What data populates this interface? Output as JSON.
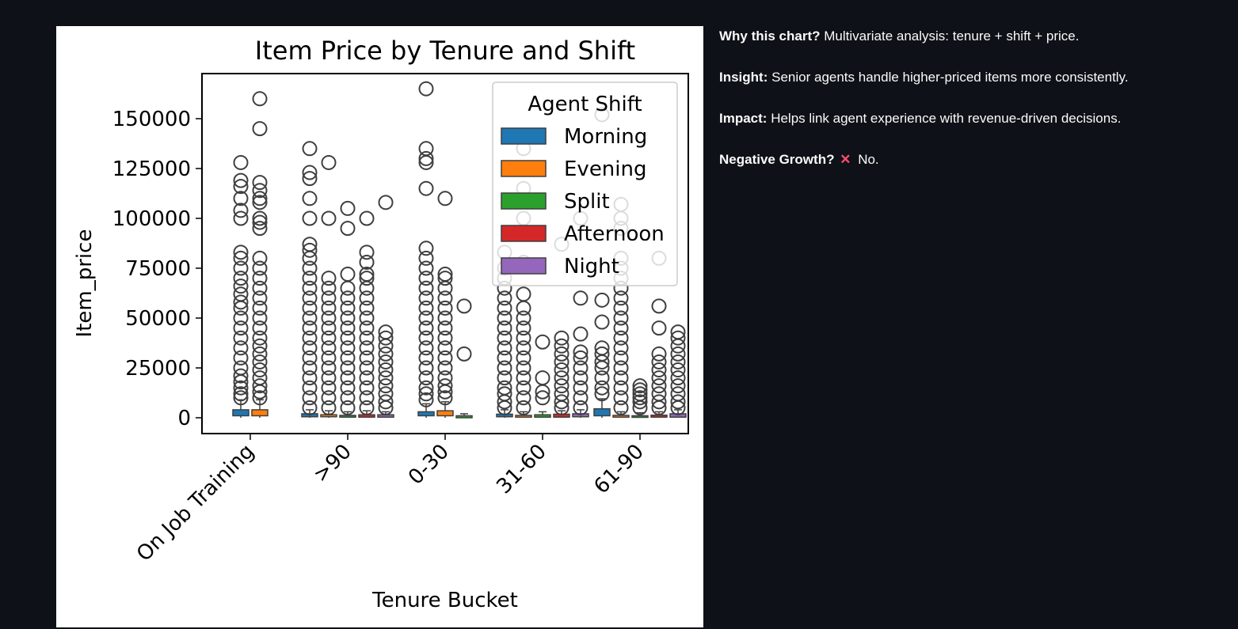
{
  "chart_data": {
    "type": "box",
    "title": "Item Price by Tenure and Shift",
    "xlabel": "Tenure Bucket",
    "ylabel": "Item_price",
    "ylim": [
      -10000,
      175000
    ],
    "yticks": [
      0,
      25000,
      50000,
      75000,
      100000,
      125000,
      150000
    ],
    "ytick_labels": [
      "0",
      "25000",
      "50000",
      "75000",
      "100000",
      "125000",
      "150000"
    ],
    "categories": [
      "On Job Training",
      ">90",
      "0-30",
      "31-60",
      "61-90"
    ],
    "legend": {
      "title": "Agent Shift",
      "position": "upper right",
      "entries": [
        "Morning",
        "Evening",
        "Split",
        "Afternoon",
        "Night"
      ]
    },
    "series": [
      {
        "name": "Morning",
        "color": "#1f77b4",
        "boxes": [
          {
            "category": "On Job Training",
            "q1": 1000,
            "q3": 4000,
            "whisker_low": 0,
            "whisker_high": 9000,
            "outliers": [
              10000,
              12000,
              15000,
              18000,
              21000,
              25000,
              30000,
              35000,
              40000,
              45000,
              50000,
              55000,
              58000,
              62000,
              66000,
              70000,
              75000,
              80000,
              83000,
              100000,
              104000,
              110000,
              116000,
              119000,
              128000
            ]
          },
          {
            "category": ">90",
            "q1": 500,
            "q3": 2000,
            "whisker_low": 0,
            "whisker_high": 4000,
            "outliers": [
              5000,
              10000,
              15000,
              20000,
              25000,
              30000,
              35000,
              40000,
              45000,
              50000,
              55000,
              60000,
              65000,
              70000,
              75000,
              80000,
              84000,
              87000,
              100000,
              110000,
              120000,
              123000,
              135000
            ]
          },
          {
            "category": "0-30",
            "q1": 1000,
            "q3": 3000,
            "whisker_low": 0,
            "whisker_high": 7000,
            "outliers": [
              9000,
              12000,
              15000,
              20000,
              25000,
              30000,
              35000,
              40000,
              45000,
              50000,
              55000,
              60000,
              65000,
              70000,
              75000,
              80000,
              85000,
              115000,
              128000,
              130000,
              135000,
              165000
            ]
          },
          {
            "category": "31-60",
            "q1": 500,
            "q3": 1800,
            "whisker_low": 0,
            "whisker_high": 4000,
            "outliers": [
              5000,
              8000,
              12000,
              15000,
              20000,
              25000,
              30000,
              35000,
              40000,
              45000,
              50000,
              55000,
              60000,
              65000,
              70000,
              75000,
              83000
            ]
          },
          {
            "category": "61-90",
            "q1": 1000,
            "q3": 4500,
            "whisker_low": 0,
            "whisker_high": 9500,
            "outliers": [
              12000,
              15000,
              20000,
              25000,
              28000,
              32000,
              35000,
              48000,
              59000,
              152000
            ]
          }
        ]
      },
      {
        "name": "Evening",
        "color": "#ff7f0e",
        "boxes": [
          {
            "category": "On Job Training",
            "q1": 1000,
            "q3": 4000,
            "whisker_low": 0,
            "whisker_high": 9000,
            "outliers": [
              10000,
              13000,
              16000,
              20000,
              24000,
              28000,
              32000,
              36000,
              40000,
              45000,
              50000,
              55000,
              60000,
              65000,
              70000,
              75000,
              80000,
              95000,
              98000,
              100000,
              108000,
              110000,
              114000,
              118000,
              145000,
              160000
            ]
          },
          {
            "category": ">90",
            "q1": 500,
            "q3": 1500,
            "whisker_low": 0,
            "whisker_high": 3500,
            "outliers": [
              5000,
              10000,
              15000,
              20000,
              25000,
              30000,
              35000,
              40000,
              45000,
              50000,
              55000,
              60000,
              65000,
              70000,
              100000,
              128000
            ]
          },
          {
            "category": "0-30",
            "q1": 1000,
            "q3": 3500,
            "whisker_low": 0,
            "whisker_high": 8000,
            "outliers": [
              10000,
              13000,
              16000,
              20000,
              25000,
              30000,
              35000,
              40000,
              45000,
              50000,
              55000,
              60000,
              65000,
              70000,
              72000,
              110000
            ]
          },
          {
            "category": "31-60",
            "q1": 300,
            "q3": 1200,
            "whisker_low": 0,
            "whisker_high": 3000,
            "outliers": [
              5000,
              10000,
              15000,
              20000,
              25000,
              30000,
              35000,
              40000,
              45000,
              50000,
              55000,
              62000,
              78000,
              100000,
              115000,
              135000
            ]
          },
          {
            "category": "61-90",
            "q1": 300,
            "q3": 1200,
            "whisker_low": 0,
            "whisker_high": 3000,
            "outliers": [
              5000,
              10000,
              15000,
              20000,
              25000,
              30000,
              35000,
              40000,
              45000,
              50000,
              55000,
              60000,
              65000,
              70000,
              75000,
              80000,
              95000,
              100000,
              107000
            ]
          }
        ]
      },
      {
        "name": "Split",
        "color": "#2ca02c",
        "boxes": [
          {
            "category": ">90",
            "q1": 300,
            "q3": 1200,
            "whisker_low": 0,
            "whisker_high": 3000,
            "outliers": [
              5000,
              10000,
              15000,
              20000,
              25000,
              30000,
              35000,
              40000,
              45000,
              50000,
              55000,
              60000,
              65000,
              72000,
              95000,
              105000
            ]
          },
          {
            "category": "0-30",
            "q1": 0,
            "q3": 1000,
            "whisker_low": 0,
            "whisker_high": 2000,
            "outliers": [
              32000,
              56000
            ]
          },
          {
            "category": "31-60",
            "q1": 300,
            "q3": 1500,
            "whisker_low": 0,
            "whisker_high": 3000,
            "outliers": [
              10000,
              13000,
              20000,
              38000
            ]
          },
          {
            "category": "61-90",
            "q1": 200,
            "q3": 1000,
            "whisker_low": 0,
            "whisker_high": 2500,
            "outliers": [
              5000,
              8000,
              10000,
              12000,
              14000,
              16000
            ]
          }
        ]
      },
      {
        "name": "Afternoon",
        "color": "#d62728",
        "boxes": [
          {
            "category": ">90",
            "q1": 300,
            "q3": 1500,
            "whisker_low": 0,
            "whisker_high": 3500,
            "outliers": [
              5000,
              10000,
              15000,
              20000,
              25000,
              30000,
              35000,
              40000,
              45000,
              50000,
              55000,
              60000,
              65000,
              70000,
              72000,
              78000,
              83000,
              100000
            ]
          },
          {
            "category": "31-60",
            "q1": 300,
            "q3": 1800,
            "whisker_low": 0,
            "whisker_high": 3500,
            "outliers": [
              5000,
              8000,
              12000,
              16000,
              20000,
              24000,
              28000,
              32000,
              36000,
              40000,
              87000
            ]
          },
          {
            "category": "61-90",
            "q1": 300,
            "q3": 1300,
            "whisker_low": 0,
            "whisker_high": 3000,
            "outliers": [
              5000,
              8000,
              12000,
              16000,
              20000,
              24000,
              28000,
              32000,
              45000,
              56000,
              80000
            ]
          }
        ]
      },
      {
        "name": "Night",
        "color": "#9467bd",
        "boxes": [
          {
            "category": ">90",
            "q1": 300,
            "q3": 1500,
            "whisker_low": 0,
            "whisker_high": 3000,
            "outliers": [
              5000,
              8000,
              12000,
              16000,
              20000,
              24000,
              28000,
              32000,
              36000,
              40000,
              43000,
              108000
            ]
          },
          {
            "category": "31-60",
            "q1": 500,
            "q3": 2000,
            "whisker_low": 0,
            "whisker_high": 4000,
            "outliers": [
              5000,
              10000,
              15000,
              20000,
              25000,
              30000,
              33000,
              42000,
              60000,
              100000
            ]
          },
          {
            "category": "61-90",
            "q1": 300,
            "q3": 2000,
            "whisker_low": 0,
            "whisker_high": 4000,
            "outliers": [
              5000,
              8000,
              12000,
              16000,
              20000,
              24000,
              28000,
              32000,
              36000,
              40000,
              43000
            ]
          }
        ]
      }
    ]
  },
  "notes": [
    {
      "label": "Why this chart?",
      "text": "Multivariate analysis: tenure + shift + price."
    },
    {
      "label": "Insight:",
      "text": "Senior agents handle higher-priced items more consistently."
    },
    {
      "label": "Impact:",
      "text": "Helps link agent experience with revenue-driven decisions."
    },
    {
      "label": "Negative Growth?",
      "icon": "cross-mark-icon",
      "text": "No."
    }
  ]
}
